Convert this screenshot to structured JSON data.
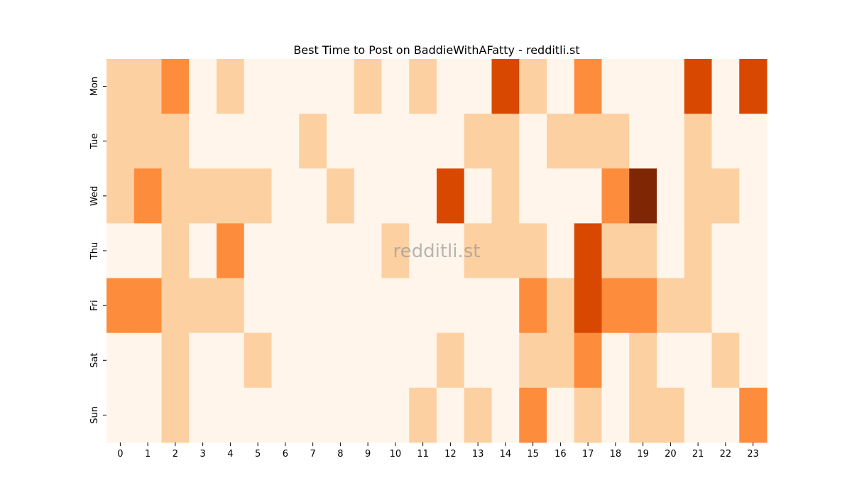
{
  "chart_data": {
    "type": "heatmap",
    "title": "Best Time to Post on BaddieWithAFatty - redditli.st",
    "watermark": "redditli.st",
    "x": [
      0,
      1,
      2,
      3,
      4,
      5,
      6,
      7,
      8,
      9,
      10,
      11,
      12,
      13,
      14,
      15,
      16,
      17,
      18,
      19,
      20,
      21,
      22,
      23
    ],
    "y": [
      "Mon",
      "Tue",
      "Wed",
      "Thu",
      "Fri",
      "Sat",
      "Sun"
    ],
    "values": [
      [
        1,
        1,
        2,
        0,
        1,
        0,
        0,
        0,
        0,
        1,
        0,
        1,
        0,
        0,
        3,
        1,
        0,
        2,
        0,
        0,
        0,
        3,
        0,
        3
      ],
      [
        1,
        1,
        1,
        0,
        0,
        0,
        0,
        1,
        0,
        0,
        0,
        0,
        0,
        1,
        1,
        0,
        1,
        1,
        1,
        0,
        0,
        1,
        0,
        0
      ],
      [
        1,
        2,
        1,
        1,
        1,
        1,
        0,
        0,
        1,
        0,
        0,
        0,
        3,
        0,
        1,
        0,
        0,
        0,
        2,
        4,
        0,
        1,
        1,
        0
      ],
      [
        0,
        0,
        1,
        0,
        2,
        0,
        0,
        0,
        0,
        0,
        1,
        0,
        0,
        1,
        1,
        1,
        0,
        3,
        1,
        1,
        0,
        1,
        0,
        0
      ],
      [
        2,
        2,
        1,
        1,
        1,
        0,
        0,
        0,
        0,
        0,
        0,
        0,
        0,
        0,
        0,
        2,
        1,
        3,
        2,
        2,
        1,
        1,
        0,
        0
      ],
      [
        0,
        0,
        1,
        0,
        0,
        1,
        0,
        0,
        0,
        0,
        0,
        0,
        1,
        0,
        0,
        1,
        1,
        2,
        0,
        1,
        0,
        0,
        1,
        0
      ],
      [
        0,
        0,
        1,
        0,
        0,
        0,
        0,
        0,
        0,
        0,
        0,
        1,
        0,
        1,
        0,
        2,
        0,
        1,
        0,
        1,
        1,
        0,
        0,
        2
      ]
    ],
    "colorscale": [
      "#fff5eb",
      "#fdd0a2",
      "#fd8d3c",
      "#d94801",
      "#7f2704"
    ],
    "vlim": [
      0,
      4
    ]
  }
}
